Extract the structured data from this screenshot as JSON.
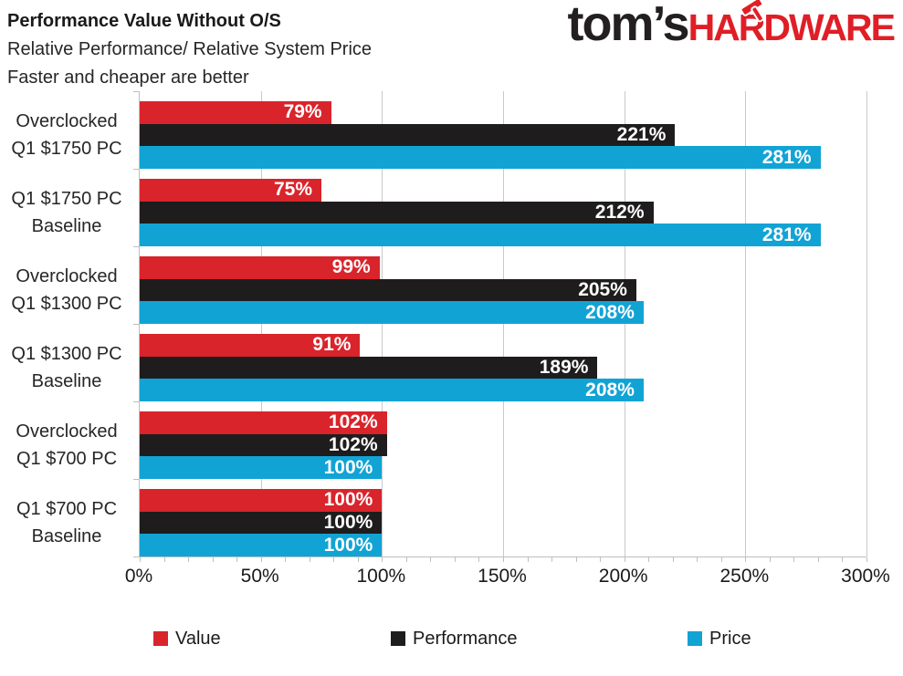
{
  "header": {
    "title": "Performance Value Without O/S",
    "subtitle": "Relative Performance/ Relative System Price",
    "note": "Faster and cheaper are better"
  },
  "logo": {
    "prefix": "tom’s",
    "suffix": "HARDWARE",
    "prefix_color": "#231f20",
    "suffix_color": "#e01e26"
  },
  "colors": {
    "value_red": "#d9242b",
    "performance_black": "#1f1c1d",
    "price_blue": "#12a3d5",
    "gridline": "#c9c9c9",
    "axis": "#bfbfbf",
    "bar_label_text": "#ffffff"
  },
  "chart_data": {
    "type": "bar",
    "orientation": "horizontal",
    "title": "Performance Value Without O/S",
    "subtitle": "Relative Performance/ Relative System Price",
    "note": "Faster and cheaper are better",
    "categories": [
      "Overclocked Q1 $1750 PC",
      "Q1 $1750 PC Baseline",
      "Overclocked Q1 $1300 PC",
      "Q1 $1300 PC Baseline",
      "Overclocked Q1 $700 PC",
      "Q1 $700 PC Baseline"
    ],
    "category_lines": [
      [
        "Overclocked",
        "Q1 $1750 PC"
      ],
      [
        "Q1 $1750 PC",
        "Baseline"
      ],
      [
        "Overclocked",
        "Q1 $1300 PC"
      ],
      [
        "Q1 $1300 PC",
        "Baseline"
      ],
      [
        "Overclocked",
        "Q1 $700 PC"
      ],
      [
        "Q1 $700 PC",
        "Baseline"
      ]
    ],
    "series": [
      {
        "name": "Value",
        "color": "#d9242b",
        "values": [
          79,
          75,
          99,
          91,
          102,
          100
        ]
      },
      {
        "name": "Performance",
        "color": "#1f1c1d",
        "values": [
          221,
          212,
          205,
          189,
          102,
          100
        ]
      },
      {
        "name": "Price",
        "color": "#12a3d5",
        "values": [
          281,
          281,
          208,
          208,
          100,
          100
        ]
      }
    ],
    "value_suffix": "%",
    "xlim": [
      0,
      300
    ],
    "xtick_labels": [
      "0%",
      "50%",
      "100%",
      "150%",
      "200%",
      "250%",
      "300%"
    ],
    "minor_tick_step_pct": 10,
    "grid": true,
    "legend_position": "bottom"
  }
}
